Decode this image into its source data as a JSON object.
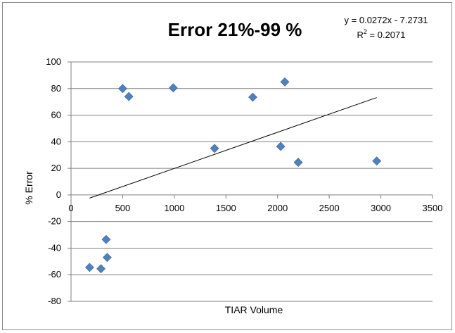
{
  "chart_data": {
    "type": "scatter",
    "title": "Error 21%-99 %",
    "xlabel": "TIAR Volume",
    "ylabel": "% Error",
    "xlim": [
      0,
      3500
    ],
    "ylim": [
      -80,
      100
    ],
    "x_ticks": [
      0,
      500,
      1000,
      1500,
      2000,
      2500,
      3000,
      3500
    ],
    "y_ticks": [
      -80,
      -60,
      -40,
      -20,
      0,
      20,
      40,
      60,
      80,
      100
    ],
    "grid": "horizontal",
    "legend": "none",
    "marker_color": "#4f81bd",
    "series": [
      {
        "x": [
          500,
          560,
          990,
          1390,
          1760,
          2030,
          2070,
          2200,
          2960,
          340,
          350,
          180,
          290
        ],
        "y": [
          80,
          74,
          80.5,
          35,
          73.5,
          36.5,
          85,
          24.5,
          25.5,
          -33.5,
          -47,
          -54.5,
          -55.5
        ]
      }
    ],
    "trendline": {
      "type": "linear",
      "slope": 0.0272,
      "intercept": -7.2731,
      "x_range": [
        180,
        2960
      ],
      "equation": "y = 0.0272x - 7.2731",
      "r2_label": "R",
      "r2_sup": "2",
      "r2_value": " = 0.2071"
    }
  }
}
